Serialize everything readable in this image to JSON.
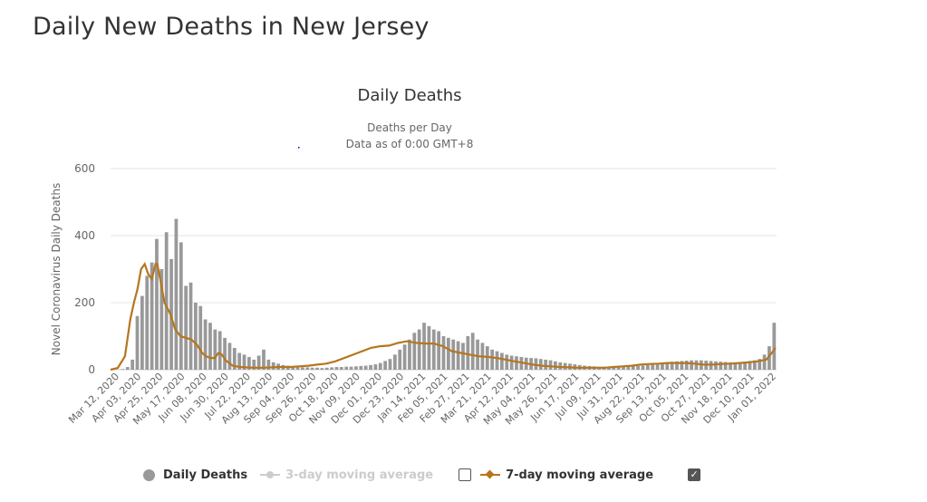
{
  "page": {
    "title": "Daily New Deaths in New Jersey"
  },
  "colors": {
    "bars": "#999999",
    "avg7": "#b5761e",
    "avg3": "#cccccc",
    "grid": "#e6e6e6",
    "text": "#333333"
  },
  "legend": {
    "daily": "Daily Deaths",
    "avg3": "3-day moving average",
    "avg7": "7-day moving average"
  },
  "chart_data": {
    "type": "bar",
    "title": "Daily Deaths",
    "subtitle_line1": "Deaths per Day",
    "subtitle_line2": "Data as of 0:00 GMT+8",
    "ylabel": "Novel Coronavirus Daily Deaths",
    "xlabel": "",
    "ylim": [
      0,
      600
    ],
    "yticks": [
      0,
      200,
      400,
      600
    ],
    "grid": true,
    "legend_position": "bottom",
    "x_ticks": [
      "Mar 12, 2020",
      "Apr 03, 2020",
      "Apr 25, 2020",
      "May 17, 2020",
      "Jun 08, 2020",
      "Jun 30, 2020",
      "Jul 22, 2020",
      "Aug 13, 2020",
      "Sep 04, 2020",
      "Sep 26, 2020",
      "Oct 18, 2020",
      "Nov 09, 2020",
      "Dec 01, 2020",
      "Dec 23, 2020",
      "Jan 14, 2021",
      "Feb 05, 2021",
      "Feb 27, 2021",
      "Mar 21, 2021",
      "Apr 12, 2021",
      "May 04, 2021",
      "May 26, 2021",
      "Jun 17, 2021",
      "Jul 09, 2021",
      "Jul 31, 2021",
      "Aug 22, 2021",
      "Sep 13, 2021",
      "Oct 05, 2021",
      "Oct 27, 2021",
      "Nov 18, 2021",
      "Dec 10, 2021",
      "Jan 01, 2022"
    ],
    "series": [
      {
        "name": "Daily Deaths",
        "kind": "bar",
        "days_per_point": 4,
        "values": [
          0,
          0,
          2,
          8,
          30,
          160,
          220,
          280,
          320,
          390,
          300,
          410,
          330,
          450,
          380,
          250,
          260,
          200,
          190,
          150,
          140,
          120,
          115,
          95,
          80,
          65,
          50,
          45,
          38,
          30,
          42,
          60,
          30,
          22,
          18,
          14,
          12,
          10,
          8,
          7,
          7,
          6,
          6,
          5,
          6,
          7,
          8,
          8,
          9,
          9,
          10,
          11,
          12,
          14,
          16,
          20,
          26,
          32,
          45,
          60,
          75,
          90,
          110,
          120,
          140,
          130,
          120,
          115,
          100,
          95,
          90,
          85,
          80,
          100,
          110,
          90,
          80,
          70,
          60,
          55,
          50,
          45,
          42,
          40,
          38,
          36,
          35,
          34,
          32,
          30,
          28,
          25,
          22,
          20,
          18,
          16,
          14,
          12,
          11,
          10,
          9,
          9,
          8,
          8,
          8,
          8,
          9,
          10,
          11,
          12,
          14,
          16,
          18,
          20,
          22,
          24,
          25,
          26,
          27,
          28,
          28,
          28,
          27,
          26,
          25,
          24,
          23,
          22,
          22,
          23,
          24,
          26,
          28,
          32,
          45,
          70,
          140
        ]
      },
      {
        "name": "7-day moving average",
        "kind": "line",
        "points": [
          [
            0,
            0
          ],
          [
            4,
            5
          ],
          [
            8,
            40
          ],
          [
            11,
            150
          ],
          [
            13,
            200
          ],
          [
            15,
            240
          ],
          [
            17,
            300
          ],
          [
            19,
            315
          ],
          [
            21,
            285
          ],
          [
            23,
            270
          ],
          [
            25,
            315
          ],
          [
            26,
            315
          ],
          [
            28,
            260
          ],
          [
            30,
            200
          ],
          [
            33,
            170
          ],
          [
            36,
            120
          ],
          [
            39,
            100
          ],
          [
            42,
            95
          ],
          [
            45,
            90
          ],
          [
            48,
            75
          ],
          [
            51,
            50
          ],
          [
            53,
            40
          ],
          [
            56,
            35
          ],
          [
            58,
            35
          ],
          [
            60,
            50
          ],
          [
            62,
            45
          ],
          [
            64,
            28
          ],
          [
            66,
            20
          ],
          [
            68,
            12
          ],
          [
            70,
            10
          ],
          [
            72,
            8
          ],
          [
            75,
            7
          ],
          [
            80,
            6
          ],
          [
            85,
            6
          ],
          [
            90,
            7
          ],
          [
            95,
            8
          ],
          [
            100,
            8
          ],
          [
            105,
            10
          ],
          [
            110,
            12
          ],
          [
            115,
            15
          ],
          [
            120,
            18
          ],
          [
            125,
            25
          ],
          [
            130,
            35
          ],
          [
            135,
            45
          ],
          [
            140,
            55
          ],
          [
            145,
            65
          ],
          [
            150,
            70
          ],
          [
            155,
            72
          ],
          [
            160,
            80
          ],
          [
            165,
            85
          ],
          [
            170,
            80
          ],
          [
            175,
            78
          ],
          [
            180,
            78
          ],
          [
            185,
            70
          ],
          [
            190,
            55
          ],
          [
            195,
            50
          ],
          [
            200,
            45
          ],
          [
            205,
            40
          ],
          [
            210,
            38
          ],
          [
            215,
            35
          ],
          [
            220,
            30
          ],
          [
            225,
            25
          ],
          [
            230,
            20
          ],
          [
            235,
            15
          ],
          [
            240,
            12
          ],
          [
            245,
            10
          ],
          [
            250,
            8
          ],
          [
            255,
            7
          ],
          [
            260,
            6
          ],
          [
            265,
            6
          ],
          [
            270,
            6
          ],
          [
            275,
            6
          ],
          [
            280,
            8
          ],
          [
            285,
            10
          ],
          [
            290,
            12
          ],
          [
            295,
            15
          ],
          [
            300,
            17
          ],
          [
            305,
            18
          ],
          [
            310,
            20
          ],
          [
            315,
            20
          ],
          [
            320,
            20
          ],
          [
            325,
            18
          ],
          [
            330,
            15
          ],
          [
            335,
            15
          ],
          [
            340,
            17
          ],
          [
            345,
            18
          ],
          [
            350,
            20
          ],
          [
            355,
            22
          ],
          [
            360,
            25
          ],
          [
            365,
            30
          ],
          [
            368,
            50
          ],
          [
            370,
            65
          ]
        ]
      }
    ]
  }
}
